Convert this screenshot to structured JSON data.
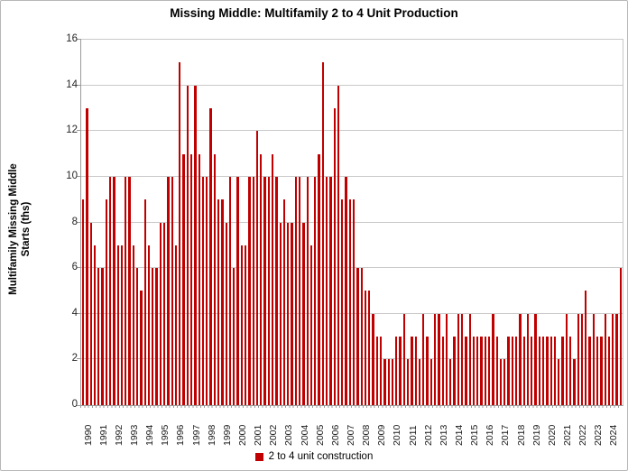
{
  "title": "Missing Middle: Multifamily 2 to 4 Unit Production",
  "y_axis": {
    "title_line1": "Multifamily Missing Middle",
    "title_line2": "Starts (ths)",
    "min": 0,
    "max": 16,
    "step": 2,
    "tick_labels": [
      "0",
      "2",
      "4",
      "6",
      "8",
      "10",
      "12",
      "14",
      "16"
    ]
  },
  "legend": {
    "label": "2 to 4 unit construction"
  },
  "colors": {
    "bar": "#C00000",
    "gridline": "#C9C9C9",
    "axis": "#9A9A9A",
    "text": "#262626"
  },
  "chart_data": {
    "type": "bar",
    "title": "Missing Middle: Multifamily 2 to 4 Unit Production",
    "xlabel": "",
    "ylabel": "Multifamily Missing Middle Starts (ths)",
    "ylim": [
      0,
      16
    ],
    "grid": true,
    "legend_position": "bottom",
    "frequency": "quarterly",
    "categories": [
      "1990",
      "1991",
      "1992",
      "1993",
      "1994",
      "1995",
      "1996",
      "1997",
      "1998",
      "1999",
      "2000",
      "2001",
      "2002",
      "2003",
      "2004",
      "2005",
      "2006",
      "2007",
      "2008",
      "2009",
      "2010",
      "2011",
      "2012",
      "2013",
      "2014",
      "2015",
      "2016",
      "2017",
      "2018",
      "2019",
      "2020",
      "2021",
      "2022",
      "2023",
      "2024"
    ],
    "series": [
      {
        "name": "2 to 4 unit construction",
        "values_by_year": {
          "1990": [
            9,
            13,
            8,
            7
          ],
          "1991": [
            6,
            6,
            9,
            10
          ],
          "1992": [
            10,
            7,
            7,
            10
          ],
          "1993": [
            10,
            7,
            6,
            5
          ],
          "1994": [
            9,
            7,
            6,
            6
          ],
          "1995": [
            8,
            8,
            10,
            10
          ],
          "1996": [
            7,
            15,
            11,
            14
          ],
          "1997": [
            11,
            14,
            11,
            10
          ],
          "1998": [
            10,
            13,
            11,
            9
          ],
          "1999": [
            9,
            8,
            10,
            6
          ],
          "2000": [
            10,
            7,
            7,
            10
          ],
          "2001": [
            10,
            12,
            11,
            10
          ],
          "2002": [
            10,
            11,
            10,
            8
          ],
          "2003": [
            9,
            8,
            8,
            10
          ],
          "2004": [
            10,
            8,
            10,
            7
          ],
          "2005": [
            10,
            11,
            15,
            10
          ],
          "2006": [
            10,
            13,
            14,
            9
          ],
          "2007": [
            10,
            9,
            9,
            6
          ],
          "2008": [
            6,
            5,
            5,
            4
          ],
          "2009": [
            3,
            3,
            2,
            2
          ],
          "2010": [
            2,
            3,
            3,
            4
          ],
          "2011": [
            2,
            3,
            3,
            2
          ],
          "2012": [
            4,
            3,
            2,
            4
          ],
          "2013": [
            4,
            3,
            4,
            2
          ],
          "2014": [
            3,
            4,
            4,
            3
          ],
          "2015": [
            4,
            3,
            3,
            3
          ],
          "2016": [
            3,
            3,
            4,
            3
          ],
          "2017": [
            2,
            2,
            3,
            3
          ],
          "2018": [
            3,
            4,
            3,
            4
          ],
          "2019": [
            3,
            4,
            3,
            3
          ],
          "2020": [
            3,
            3,
            3,
            2
          ],
          "2021": [
            3,
            4,
            3,
            2
          ],
          "2022": [
            4,
            4,
            5,
            3
          ],
          "2023": [
            4,
            3,
            3,
            4
          ],
          "2024": [
            3,
            4,
            4,
            6
          ]
        }
      }
    ]
  }
}
